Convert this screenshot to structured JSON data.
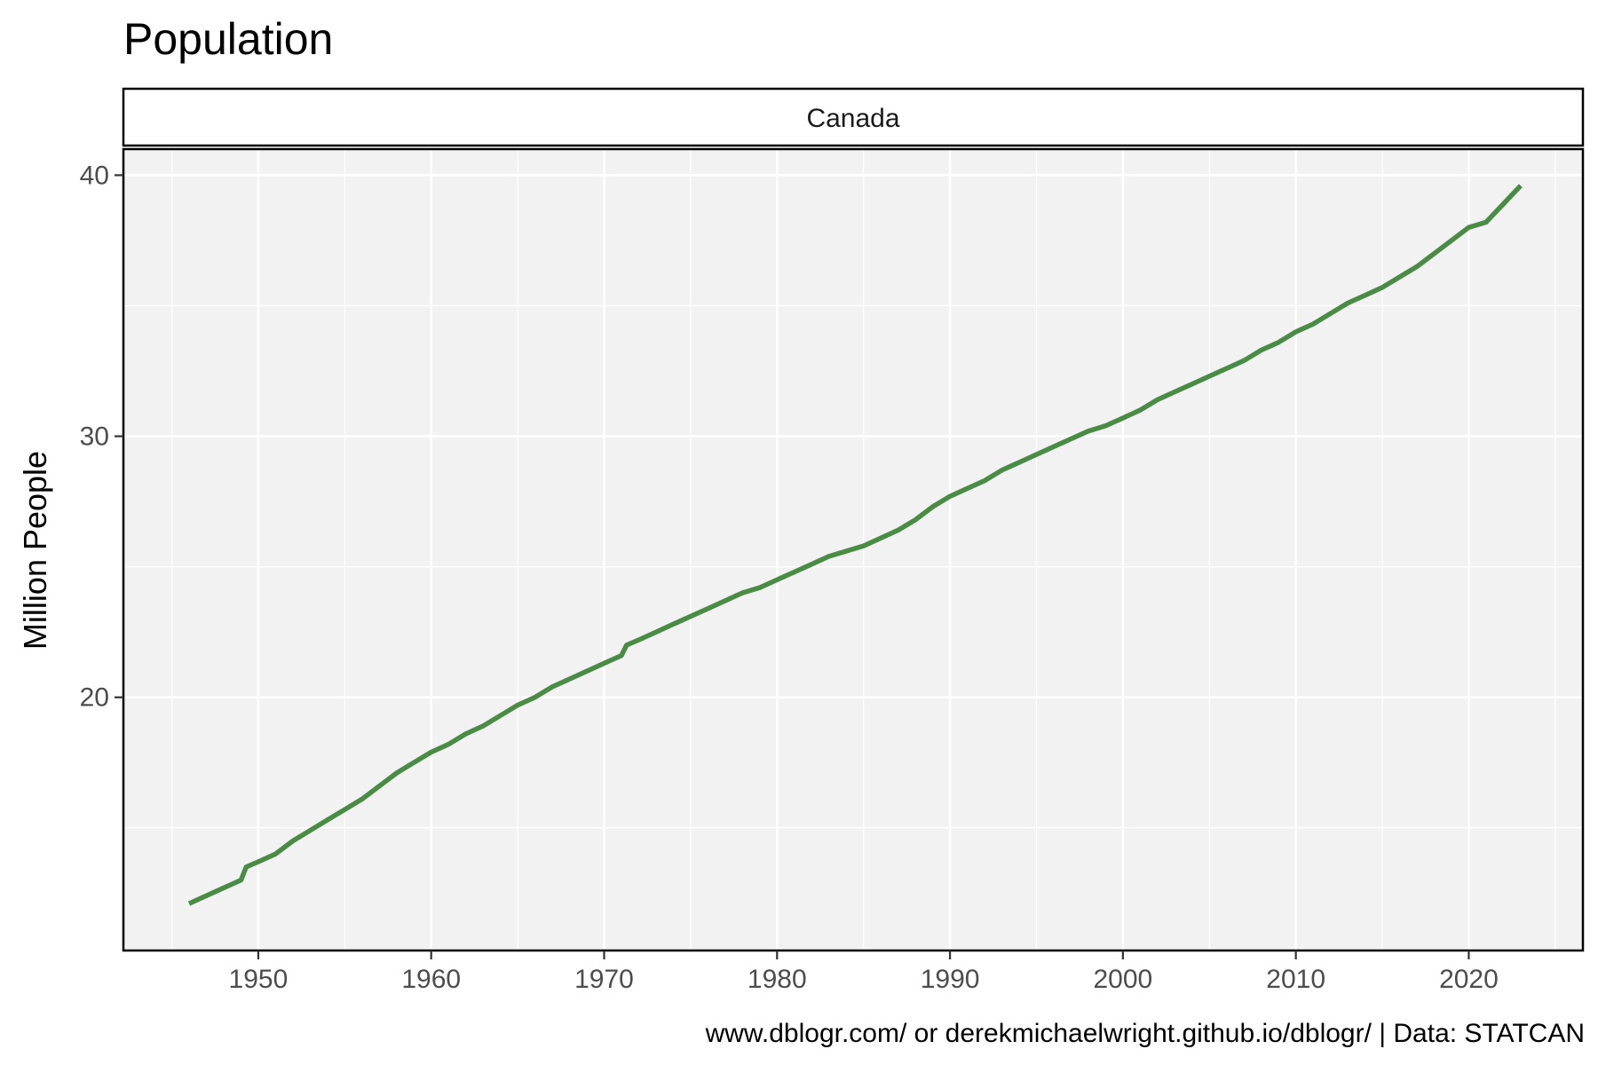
{
  "chart_data": {
    "type": "line",
    "title": "Population",
    "facet_label": "Canada",
    "xlabel": "",
    "ylabel": "Million People",
    "caption": "www.dblogr.com/ or derekmichaelwright.github.io/dblogr/ | Data: STATCAN",
    "xlim": [
      1942.2,
      2026.6
    ],
    "ylim": [
      10.3,
      41.0
    ],
    "x_ticks": [
      1950,
      1960,
      1970,
      1980,
      1990,
      2000,
      2010,
      2020
    ],
    "x_tick_labels": [
      "1950",
      "1960",
      "1970",
      "1980",
      "1990",
      "2000",
      "2010",
      "2020"
    ],
    "y_ticks": [
      20,
      30,
      40
    ],
    "y_tick_labels": [
      "20",
      "30",
      "40"
    ],
    "grid": true,
    "legend": "none",
    "colors": {
      "line": "#4a8c45",
      "panel": "#f2f2f2",
      "grid": "#ffffff",
      "border": "#000000"
    },
    "series": [
      {
        "x": [
          1946,
          1947,
          1948,
          1949,
          1949.3,
          1950,
          1951,
          1952,
          1953,
          1954,
          1955,
          1956,
          1957,
          1958,
          1959,
          1960,
          1961,
          1962,
          1963,
          1964,
          1965,
          1966,
          1967,
          1968,
          1969,
          1970,
          1971,
          1971.3,
          1972,
          1973,
          1974,
          1975,
          1976,
          1977,
          1978,
          1979,
          1980,
          1981,
          1982,
          1983,
          1984,
          1985,
          1986,
          1987,
          1988,
          1989,
          1990,
          1991,
          1992,
          1993,
          1994,
          1995,
          1996,
          1997,
          1998,
          1999,
          2000,
          2001,
          2002,
          2003,
          2004,
          2005,
          2006,
          2007,
          2008,
          2009,
          2010,
          2011,
          2012,
          2013,
          2014,
          2015,
          2016,
          2017,
          2018,
          2019,
          2020,
          2021,
          2022,
          2023
        ],
        "values": [
          12.1,
          12.4,
          12.7,
          13.0,
          13.5,
          13.7,
          14.0,
          14.5,
          14.9,
          15.3,
          15.7,
          16.1,
          16.6,
          17.1,
          17.5,
          17.9,
          18.2,
          18.6,
          18.9,
          19.3,
          19.7,
          20.0,
          20.4,
          20.7,
          21.0,
          21.3,
          21.6,
          22.0,
          22.2,
          22.5,
          22.8,
          23.1,
          23.4,
          23.7,
          24.0,
          24.2,
          24.5,
          24.8,
          25.1,
          25.4,
          25.6,
          25.8,
          26.1,
          26.4,
          26.8,
          27.3,
          27.7,
          28.0,
          28.3,
          28.7,
          29.0,
          29.3,
          29.6,
          29.9,
          30.2,
          30.4,
          30.7,
          31.0,
          31.4,
          31.7,
          32.0,
          32.3,
          32.6,
          32.9,
          33.3,
          33.6,
          34.0,
          34.3,
          34.7,
          35.1,
          35.4,
          35.7,
          36.1,
          36.5,
          37.0,
          37.5,
          38.0,
          38.2,
          38.9,
          39.6
        ]
      }
    ]
  }
}
